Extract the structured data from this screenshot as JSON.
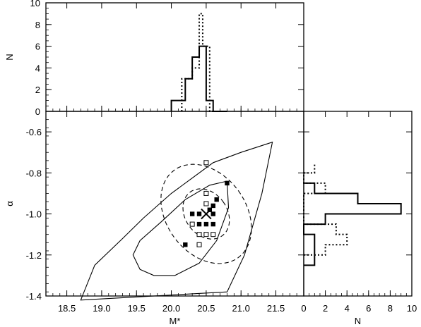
{
  "chart_data": [
    {
      "type": "contour-scatter",
      "panel": "main",
      "xlabel": "M*",
      "ylabel": "α",
      "xlim": [
        18.2,
        21.9
      ],
      "ylim": [
        -1.4,
        -0.5
      ],
      "xticks": [
        "18.5",
        "19.0",
        "19.5",
        "20.0",
        "20.5",
        "21.0",
        "21.5"
      ],
      "xtick_values": [
        18.5,
        19.0,
        19.5,
        20.0,
        20.5,
        21.0,
        21.5
      ],
      "yticks": [
        "-0.6",
        "-0.8",
        "-1.0",
        "-1.2",
        "-1.4"
      ],
      "ytick_values": [
        -0.6,
        -0.8,
        -1.0,
        -1.2,
        -1.4
      ],
      "best_fit": {
        "x": 20.5,
        "y": -1.0
      },
      "filled_points": [
        {
          "x": 20.8,
          "y": -0.85
        },
        {
          "x": 20.65,
          "y": -0.93
        },
        {
          "x": 20.3,
          "y": -1.0
        },
        {
          "x": 20.4,
          "y": -1.0
        },
        {
          "x": 20.55,
          "y": -0.98
        },
        {
          "x": 20.6,
          "y": -0.96
        },
        {
          "x": 20.6,
          "y": -1.0
        },
        {
          "x": 20.4,
          "y": -1.05
        },
        {
          "x": 20.5,
          "y": -1.05
        },
        {
          "x": 20.6,
          "y": -1.05
        },
        {
          "x": 20.2,
          "y": -1.15
        }
      ],
      "open_points": [
        {
          "x": 20.5,
          "y": -0.75
        },
        {
          "x": 20.5,
          "y": -0.9
        },
        {
          "x": 20.5,
          "y": -0.95
        },
        {
          "x": 20.3,
          "y": -1.05
        },
        {
          "x": 20.4,
          "y": -1.1
        },
        {
          "x": 20.5,
          "y": -1.1
        },
        {
          "x": 20.6,
          "y": -1.1
        },
        {
          "x": 20.4,
          "y": -1.15
        }
      ],
      "contours": [
        {
          "style": "solid",
          "points": [
            [
              18.7,
              -1.42
            ],
            [
              18.9,
              -1.25
            ],
            [
              19.3,
              -1.12
            ],
            [
              19.6,
              -1.02
            ],
            [
              20.0,
              -0.9
            ],
            [
              20.6,
              -0.75
            ],
            [
              21.0,
              -0.7
            ],
            [
              21.45,
              -0.65
            ],
            [
              21.3,
              -0.9
            ],
            [
              21.05,
              -1.2
            ],
            [
              20.8,
              -1.38
            ]
          ]
        },
        {
          "style": "solid",
          "points": [
            [
              19.55,
              -1.27
            ],
            [
              19.75,
              -1.3
            ],
            [
              20.05,
              -1.3
            ],
            [
              20.4,
              -1.24
            ],
            [
              20.65,
              -1.13
            ],
            [
              20.82,
              -0.97
            ],
            [
              20.8,
              -0.84
            ],
            [
              20.55,
              -0.86
            ],
            [
              20.2,
              -0.93
            ],
            [
              19.85,
              -1.04
            ],
            [
              19.55,
              -1.13
            ],
            [
              19.45,
              -1.2
            ]
          ]
        },
        {
          "style": "dashed",
          "cx": 20.5,
          "cy": -1.0,
          "rx": 0.57,
          "ry": 0.12,
          "angle_deg": -36
        },
        {
          "style": "dashed",
          "cx": 20.5,
          "cy": -1.0,
          "rx": 0.3,
          "ry": 0.06,
          "angle_deg": -36
        }
      ]
    },
    {
      "type": "histogram",
      "panel": "top",
      "xlabel": "",
      "ylabel": "N",
      "xlim": [
        18.2,
        21.9
      ],
      "ylim": [
        0,
        10
      ],
      "yticks": [
        "0",
        "2",
        "4",
        "6",
        "8",
        "10"
      ],
      "ytick_values": [
        0,
        2,
        4,
        6,
        8,
        10
      ],
      "series": [
        {
          "style": "solid",
          "bin_edges": [
            20.0,
            20.2,
            20.3,
            20.4,
            20.5,
            20.6,
            20.8
          ],
          "counts": [
            1,
            3,
            5,
            6,
            1,
            0
          ]
        },
        {
          "style": "dotted",
          "bin_edges": [
            20.15,
            20.3,
            20.4,
            20.45,
            20.55,
            20.65
          ],
          "counts": [
            3,
            4,
            9,
            6,
            0
          ]
        }
      ]
    },
    {
      "type": "histogram-horizontal",
      "panel": "right",
      "xlabel": "N",
      "ylabel": "",
      "xlim": [
        0,
        10
      ],
      "ylim": [
        -1.4,
        -0.5
      ],
      "xticks": [
        "0",
        "2",
        "4",
        "6",
        "8",
        "10"
      ],
      "xtick_values": [
        0,
        2,
        4,
        6,
        8,
        10
      ],
      "series": [
        {
          "style": "solid",
          "bin_edges": [
            -1.25,
            -1.2,
            -1.15,
            -1.1,
            -1.05,
            -1.0,
            -0.95,
            -0.9,
            -0.85
          ],
          "counts": [
            1,
            1,
            1,
            0,
            2,
            9,
            5,
            1
          ]
        },
        {
          "style": "dotted",
          "bin_edges": [
            -1.2,
            -1.15,
            -1.1,
            -1.05,
            -1.0,
            -0.95,
            -0.9,
            -0.85,
            -0.8,
            -0.75
          ],
          "counts": [
            2,
            4,
            3,
            0,
            0,
            0,
            2,
            0,
            1,
            1
          ]
        }
      ]
    }
  ]
}
